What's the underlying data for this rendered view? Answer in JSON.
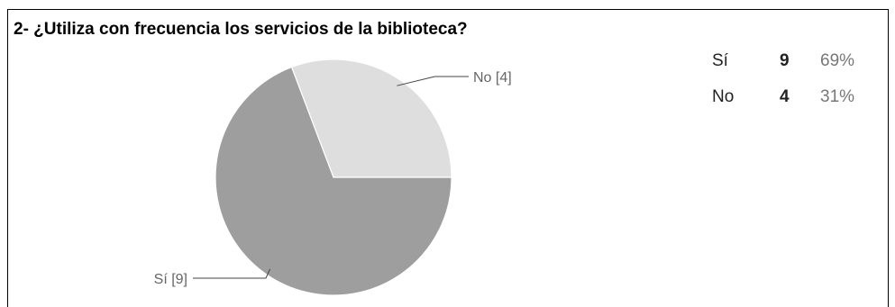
{
  "question": "2- ¿Utiliza con frecuencia los servicios de la biblioteca?",
  "colors": {
    "si": "#9e9e9e",
    "no": "#dedede",
    "leader": "#444444"
  },
  "summary": [
    {
      "label": "Sí",
      "count": "9",
      "percent": "69%"
    },
    {
      "label": "No",
      "count": "4",
      "percent": "31%"
    }
  ],
  "chart_data": {
    "type": "pie",
    "title": "2- ¿Utiliza con frecuencia los servicios de la biblioteca?",
    "slices": [
      {
        "label": "Sí [9]",
        "category": "Sí",
        "value": 9,
        "percent": 69
      },
      {
        "label": "No [4]",
        "category": "No",
        "value": 4,
        "percent": 31
      }
    ],
    "start_angle": "3 o'clock, counter-clockwise for No"
  }
}
